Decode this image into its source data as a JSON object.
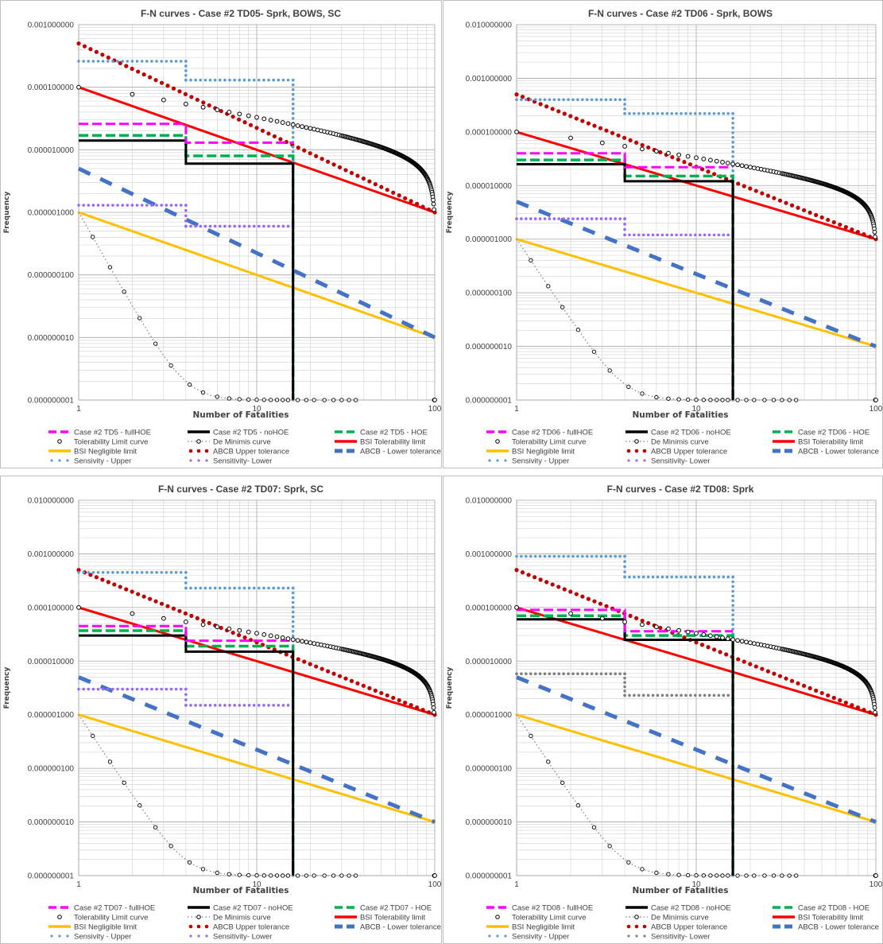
{
  "colors": {
    "fullHOE": "#ff00ff",
    "noHOE": "#000000",
    "HOE": "#00b050",
    "tolerability_curve": "#000000",
    "de_minimis": "#7f7f7f",
    "bsi_tol": "#ff0000",
    "bsi_neg": "#ffc000",
    "abcb_upper": "#c00000",
    "abcb_lower": "#4472c4",
    "sens_upper": "#5b9bd5",
    "sens_lower": "#9966ff",
    "sens_lower_grey": "#808080"
  },
  "chart_data": [
    {
      "type": "line",
      "title": "F-N curves - Case #2 TD05- Sprk, BOWS, SC",
      "xlabel": "Number of Fatalities",
      "ylabel": "Frequency",
      "x_scale": "log",
      "y_scale": "log",
      "xlim": [
        1,
        100
      ],
      "ylim": [
        1e-09,
        0.001
      ],
      "x_ticks": [
        "1",
        "10",
        "100"
      ],
      "y_ticks": [
        "0.000000001",
        "0.000000010",
        "0.000000100",
        "0.000001000",
        "0.000010000",
        "0.000100000",
        "0.001000000"
      ],
      "grid": true,
      "legend_position": "bottom",
      "series": [
        {
          "name": "Case #2 TD5 - fullHOE",
          "style": "fullHOE",
          "points": [
            [
              1,
              2.6e-05
            ],
            [
              4,
              2.6e-05
            ],
            [
              4,
              1.3e-05
            ],
            [
              16,
              1.3e-05
            ]
          ]
        },
        {
          "name": "Case #2 TD5 - noHOE",
          "style": "noHOE",
          "points": [
            [
              1,
              1.4e-05
            ],
            [
              4,
              1.4e-05
            ],
            [
              4,
              6e-06
            ],
            [
              16,
              6e-06
            ],
            [
              16,
              1e-09
            ]
          ]
        },
        {
          "name": "Case #2 TD5 - HOE",
          "style": "HOE",
          "points": [
            [
              1,
              1.7e-05
            ],
            [
              4,
              1.7e-05
            ],
            [
              4,
              8e-06
            ],
            [
              16,
              8e-06
            ],
            [
              16,
              1e-09
            ]
          ]
        },
        {
          "name": "Tolerability Limit curve",
          "style": "tolerability_curve"
        },
        {
          "name": "De Minimis curve",
          "style": "de_minimis"
        },
        {
          "name": "BSI Tolerability limit",
          "style": "bsi_tol",
          "points": [
            [
              1,
              0.0001
            ],
            [
              100,
              1e-06
            ]
          ]
        },
        {
          "name": "BSI Negligible limit",
          "style": "bsi_neg",
          "points": [
            [
              1,
              1e-06
            ],
            [
              100,
              1e-08
            ]
          ]
        },
        {
          "name": "ABCB Upper tolerance",
          "style": "abcb_upper",
          "points": [
            [
              1,
              0.0005
            ],
            [
              100,
              1e-06
            ]
          ]
        },
        {
          "name": "ABCB - Lower tolerance",
          "style": "abcb_lower",
          "points": [
            [
              1,
              5e-06
            ],
            [
              100,
              1e-08
            ]
          ]
        },
        {
          "name": "Sensivity - Upper",
          "style": "sens_upper",
          "points": [
            [
              1,
              0.00026
            ],
            [
              4,
              0.00026
            ],
            [
              4,
              0.00013
            ],
            [
              16,
              0.00013
            ],
            [
              16,
              1e-09
            ]
          ]
        },
        {
          "name": "Sensitivity- Lower",
          "style": "sens_lower",
          "points": [
            [
              1,
              1.3e-06
            ],
            [
              4,
              1.3e-06
            ],
            [
              4,
              6e-07
            ],
            [
              16,
              6e-07
            ]
          ]
        }
      ]
    },
    {
      "type": "line",
      "title": "F-N curves - Case #2 TD06 - Sprk, BOWS",
      "xlabel": "Number of Fatalities",
      "ylabel": "Frequency",
      "x_scale": "log",
      "y_scale": "log",
      "xlim": [
        1,
        100
      ],
      "ylim": [
        1e-09,
        0.01
      ],
      "x_ticks": [
        "1",
        "10",
        "100"
      ],
      "y_ticks": [
        "0.000000001",
        "0.000000010",
        "0.000000100",
        "0.000001000",
        "0.000010000",
        "0.000100000",
        "0.001000000",
        "0.010000000"
      ],
      "grid": true,
      "legend_position": "bottom",
      "series": [
        {
          "name": "Case #2 TD06 - fullHOE",
          "style": "fullHOE",
          "points": [
            [
              1,
              4e-05
            ],
            [
              4,
              4e-05
            ],
            [
              4,
              2.2e-05
            ],
            [
              16,
              2.2e-05
            ]
          ]
        },
        {
          "name": "Case #2 TD06 - noHOE",
          "style": "noHOE",
          "points": [
            [
              1,
              2.5e-05
            ],
            [
              4,
              2.5e-05
            ],
            [
              4,
              1.2e-05
            ],
            [
              16,
              1.2e-05
            ],
            [
              16,
              1e-09
            ]
          ]
        },
        {
          "name": "Case #2 TD06 - HOE",
          "style": "HOE",
          "points": [
            [
              1,
              3e-05
            ],
            [
              4,
              3e-05
            ],
            [
              4,
              1.5e-05
            ],
            [
              16,
              1.5e-05
            ],
            [
              16,
              1e-09
            ]
          ]
        },
        {
          "name": "Tolerability Limit curve",
          "style": "tolerability_curve"
        },
        {
          "name": "De Minimis curve",
          "style": "de_minimis"
        },
        {
          "name": "BSI Tolerability limit",
          "style": "bsi_tol",
          "points": [
            [
              1,
              0.0001
            ],
            [
              100,
              1e-06
            ]
          ]
        },
        {
          "name": "BSI Negligible limit",
          "style": "bsi_neg",
          "points": [
            [
              1,
              1e-06
            ],
            [
              100,
              1e-08
            ]
          ]
        },
        {
          "name": "ABCB Upper tolerance",
          "style": "abcb_upper",
          "points": [
            [
              1,
              0.0005
            ],
            [
              100,
              1e-06
            ]
          ]
        },
        {
          "name": "ABCB - Lower tolerance",
          "style": "abcb_lower",
          "points": [
            [
              1,
              5e-06
            ],
            [
              100,
              1e-08
            ]
          ]
        },
        {
          "name": "Sensivity - Upper",
          "style": "sens_upper",
          "points": [
            [
              1,
              0.0004
            ],
            [
              4,
              0.0004
            ],
            [
              4,
              0.00022
            ],
            [
              16,
              0.00022
            ],
            [
              16,
              1e-09
            ]
          ]
        },
        {
          "name": "Sensitivity- Lower",
          "style": "sens_lower",
          "points": [
            [
              1,
              2.4e-06
            ],
            [
              4,
              2.4e-06
            ],
            [
              4,
              1.2e-06
            ],
            [
              16,
              1.2e-06
            ]
          ]
        }
      ]
    },
    {
      "type": "line",
      "title": "F-N curves - Case #2 TD07: Sprk, SC",
      "xlabel": "Number of Fatalities",
      "ylabel": "Frequency",
      "x_scale": "log",
      "y_scale": "log",
      "xlim": [
        1,
        100
      ],
      "ylim": [
        1e-09,
        0.01
      ],
      "x_ticks": [
        "1",
        "10",
        "100"
      ],
      "y_ticks": [
        "0.000000001",
        "0.000000010",
        "0.000000100",
        "0.000001000",
        "0.000010000",
        "0.000100000",
        "0.001000000",
        "0.010000000"
      ],
      "grid": true,
      "legend_position": "bottom",
      "series": [
        {
          "name": "Case #2 TD07 - fullHOE",
          "style": "fullHOE",
          "points": [
            [
              1,
              4.5e-05
            ],
            [
              4,
              4.5e-05
            ],
            [
              4,
              2.4e-05
            ],
            [
              16,
              2.4e-05
            ]
          ]
        },
        {
          "name": "Case #2 TD07 - noHOE",
          "style": "noHOE",
          "points": [
            [
              1,
              3e-05
            ],
            [
              4,
              3e-05
            ],
            [
              4,
              1.5e-05
            ],
            [
              16,
              1.5e-05
            ],
            [
              16,
              1e-09
            ]
          ]
        },
        {
          "name": "Case #2 TD07 - HOE",
          "style": "HOE",
          "points": [
            [
              1,
              3.7e-05
            ],
            [
              4,
              3.7e-05
            ],
            [
              4,
              1.9e-05
            ],
            [
              16,
              1.9e-05
            ],
            [
              16,
              1e-09
            ]
          ]
        },
        {
          "name": "Tolerability Limit curve",
          "style": "tolerability_curve"
        },
        {
          "name": "De Minimis curve",
          "style": "de_minimis"
        },
        {
          "name": "BSI Tolerability limit",
          "style": "bsi_tol",
          "points": [
            [
              1,
              0.0001
            ],
            [
              100,
              1e-06
            ]
          ]
        },
        {
          "name": "BSI Negligible limit",
          "style": "bsi_neg",
          "points": [
            [
              1,
              1e-06
            ],
            [
              100,
              1e-08
            ]
          ]
        },
        {
          "name": "ABCB Upper tolerance",
          "style": "abcb_upper",
          "points": [
            [
              1,
              0.0005
            ],
            [
              100,
              1e-06
            ]
          ]
        },
        {
          "name": "ABCB - Lower tolerance",
          "style": "abcb_lower",
          "points": [
            [
              1,
              5e-06
            ],
            [
              100,
              1e-08
            ]
          ]
        },
        {
          "name": "Sensivity - Upper",
          "style": "sens_upper",
          "points": [
            [
              1,
              0.00045
            ],
            [
              4,
              0.00045
            ],
            [
              4,
              0.00023
            ],
            [
              16,
              0.00023
            ],
            [
              16,
              1e-09
            ]
          ]
        },
        {
          "name": "Sensitivity- Lower",
          "style": "sens_lower",
          "points": [
            [
              1,
              3e-06
            ],
            [
              4,
              3e-06
            ],
            [
              4,
              1.5e-06
            ],
            [
              16,
              1.5e-06
            ]
          ]
        }
      ]
    },
    {
      "type": "line",
      "title": "F-N curves - Case #2 TD08: Sprk",
      "xlabel": "Number of Fatalities",
      "ylabel": "Frequency",
      "x_scale": "log",
      "y_scale": "log",
      "xlim": [
        1,
        100
      ],
      "ylim": [
        1e-09,
        0.01
      ],
      "x_ticks": [
        "1",
        "10",
        "100"
      ],
      "y_ticks": [
        "0.000000001",
        "0.000000010",
        "0.000000100",
        "0.000001000",
        "0.000010000",
        "0.000100000",
        "0.001000000",
        "0.010000000"
      ],
      "grid": true,
      "legend_position": "bottom",
      "series": [
        {
          "name": "Case #2 TD08 - fullHOE",
          "style": "fullHOE",
          "points": [
            [
              1,
              9e-05
            ],
            [
              4,
              9e-05
            ],
            [
              4,
              3.6e-05
            ],
            [
              16,
              3.6e-05
            ]
          ]
        },
        {
          "name": "Case #2 TD08 - noHOE",
          "style": "noHOE",
          "points": [
            [
              1,
              6e-05
            ],
            [
              4,
              6e-05
            ],
            [
              4,
              2.5e-05
            ],
            [
              16,
              2.5e-05
            ],
            [
              16,
              1e-09
            ]
          ]
        },
        {
          "name": "Case #2 TD08 - HOE",
          "style": "HOE",
          "points": [
            [
              1,
              7e-05
            ],
            [
              4,
              7e-05
            ],
            [
              4,
              3e-05
            ],
            [
              16,
              3e-05
            ],
            [
              16,
              1e-09
            ]
          ]
        },
        {
          "name": "Tolerability Limit curve",
          "style": "tolerability_curve"
        },
        {
          "name": "De Minimis curve",
          "style": "de_minimis"
        },
        {
          "name": "BSI Tolerability limit",
          "style": "bsi_tol",
          "points": [
            [
              1,
              0.0001
            ],
            [
              100,
              1e-06
            ]
          ]
        },
        {
          "name": "BSI Negligible limit",
          "style": "bsi_neg",
          "points": [
            [
              1,
              1e-06
            ],
            [
              100,
              1e-08
            ]
          ]
        },
        {
          "name": "ABCB Upper tolerance",
          "style": "abcb_upper",
          "points": [
            [
              1,
              0.0005
            ],
            [
              100,
              1e-06
            ]
          ]
        },
        {
          "name": "ABCB - Lower tolerance",
          "style": "abcb_lower",
          "points": [
            [
              1,
              5e-06
            ],
            [
              100,
              1e-08
            ]
          ]
        },
        {
          "name": "Sensivity - Upper",
          "style": "sens_upper",
          "points": [
            [
              1,
              0.0009
            ],
            [
              4,
              0.0009
            ],
            [
              4,
              0.00037
            ],
            [
              16,
              0.00037
            ],
            [
              16,
              1e-09
            ]
          ]
        },
        {
          "name": "Sensitivity- Lower",
          "style": "sens_lower_grey",
          "points": [
            [
              1,
              5.8e-06
            ],
            [
              4,
              5.8e-06
            ],
            [
              4,
              2.3e-06
            ],
            [
              16,
              2.3e-06
            ]
          ]
        }
      ]
    }
  ]
}
